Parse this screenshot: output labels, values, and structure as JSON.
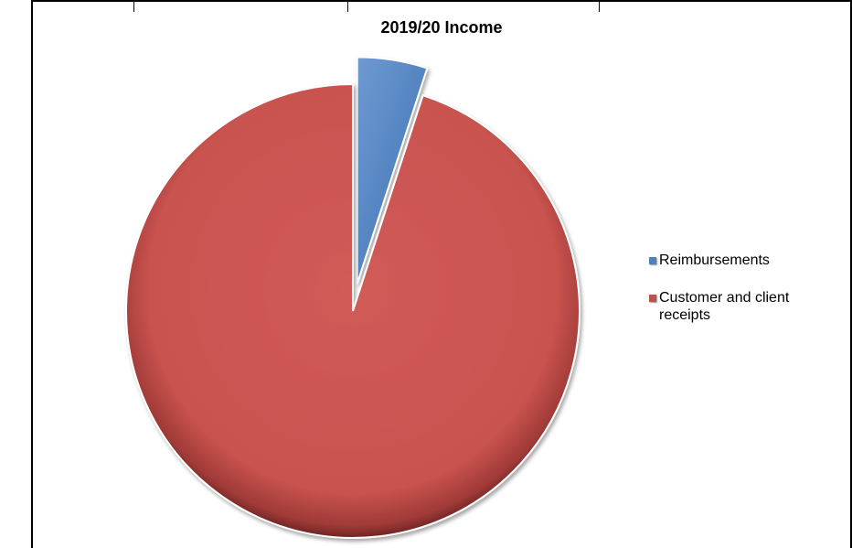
{
  "chart_data": {
    "type": "pie",
    "title": "2019/20 Income",
    "exploded": true,
    "legend_position": "right",
    "series": [
      {
        "name": "Reimbursements",
        "value": 5,
        "color": "#4f81bd"
      },
      {
        "name": "Customer and client receipts",
        "value": 95,
        "color": "#c0504d"
      }
    ]
  }
}
